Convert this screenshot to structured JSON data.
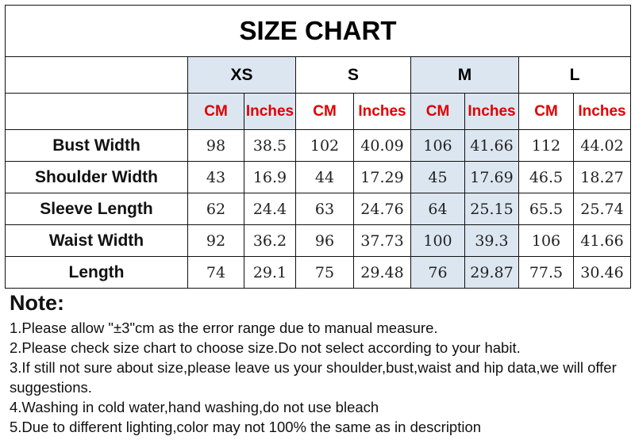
{
  "title": "SIZE CHART",
  "sizes": [
    "XS",
    "S",
    "M",
    "L"
  ],
  "units": [
    "CM",
    "Inches"
  ],
  "rows": [
    {
      "label": "Bust Width",
      "values": [
        "98",
        "38.5",
        "102",
        "40.09",
        "106",
        "41.66",
        "112",
        "44.02"
      ]
    },
    {
      "label": "Shoulder Width",
      "values": [
        "43",
        "16.9",
        "44",
        "17.29",
        "45",
        "17.69",
        "46.5",
        "18.27"
      ]
    },
    {
      "label": "Sleeve Length",
      "values": [
        "62",
        "24.4",
        "63",
        "24.76",
        "64",
        "25.15",
        "65.5",
        "25.74"
      ]
    },
    {
      "label": "Waist Width",
      "values": [
        "92",
        "36.2",
        "96",
        "37.73",
        "100",
        "39.3",
        "106",
        "41.66"
      ]
    },
    {
      "label": "Length",
      "values": [
        "74",
        "29.1",
        "75",
        "29.48",
        "76",
        "29.87",
        "77.5",
        "30.46"
      ]
    }
  ],
  "colors": {
    "unit_text": "#e00000",
    "highlight": "#dce6f0"
  },
  "notes": {
    "heading": "Note:",
    "items": [
      "1.Please allow \"±3\"cm as the error range due to manual measure.",
      "2.Please check size chart to choose size.Do not select according to your habit.",
      "3.If still not sure about size,please leave us your shoulder,bust,waist and hip data,we will offer suggestions.",
      "4.Washing in cold water,hand washing,do not use bleach",
      "5.Due to different lighting,color may not 100% the same as in description"
    ]
  }
}
